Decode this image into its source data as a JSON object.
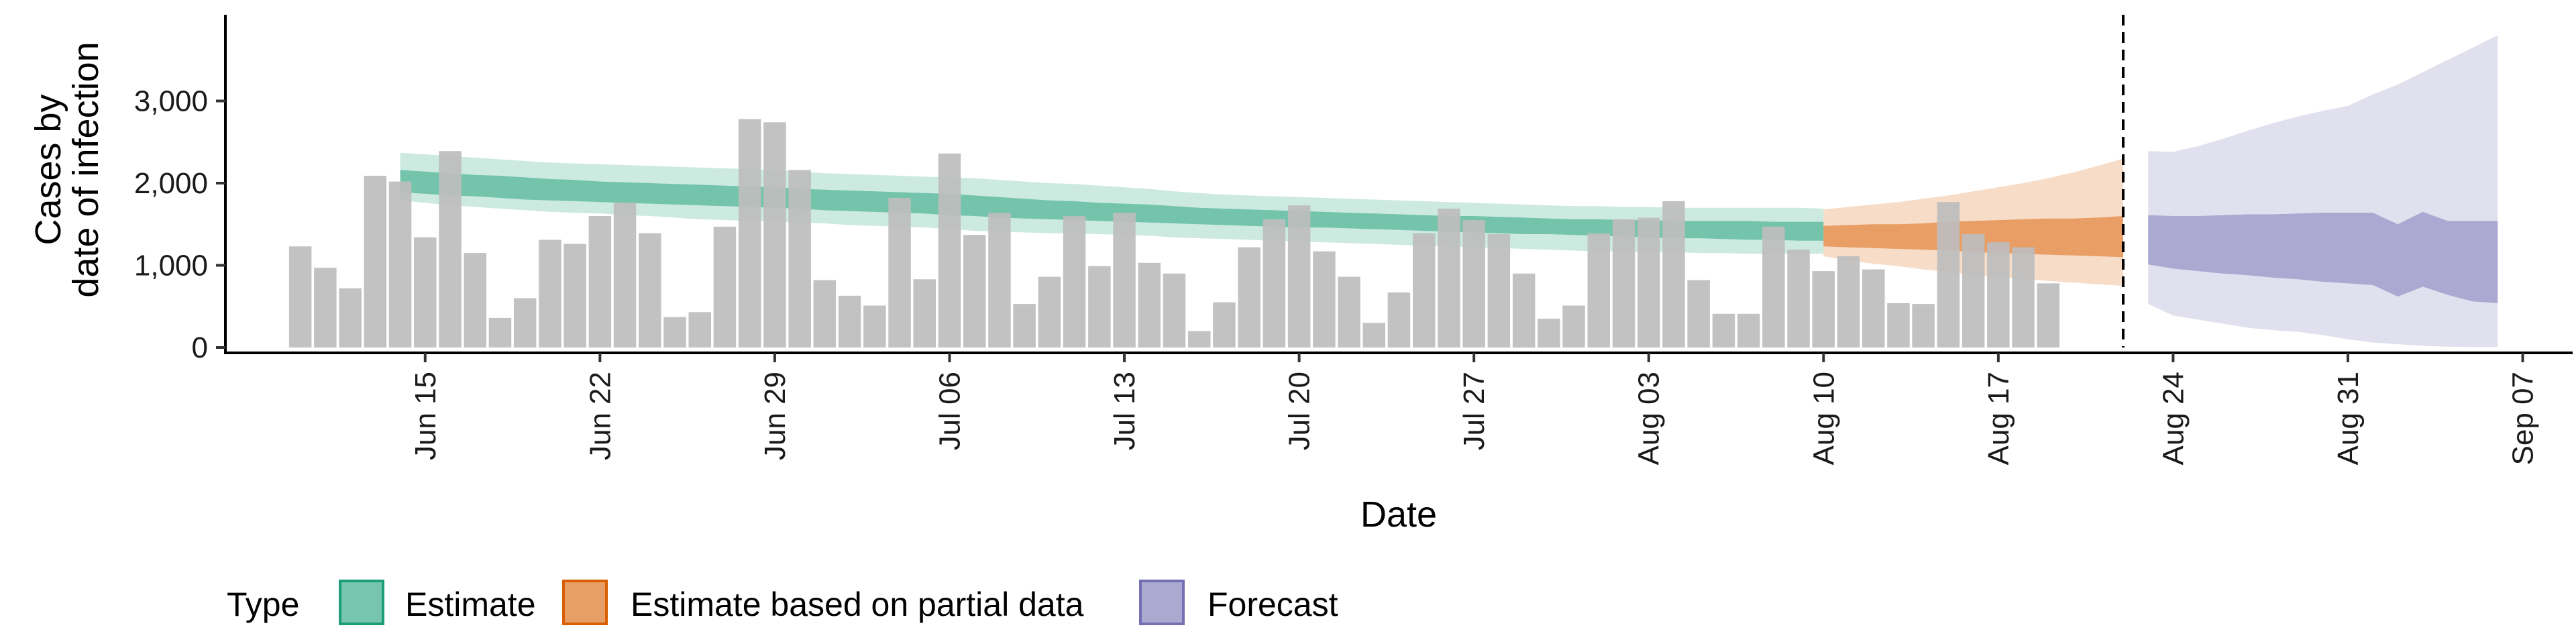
{
  "chart_data": {
    "type": "bar",
    "xlabel": "Date",
    "ylabel_lines": [
      "Cases by",
      "date of infection"
    ],
    "ylim": [
      0,
      4000
    ],
    "yticks": [
      0,
      1000,
      2000,
      3000
    ],
    "ytick_labels": [
      "0",
      "1,000",
      "2,000",
      "3,000"
    ],
    "x_start_date": "2020-06-10",
    "xlim_dates": [
      "2020-06-07",
      "2020-09-09"
    ],
    "xticks": [
      {
        "date": "2020-06-15",
        "label": "Jun 15"
      },
      {
        "date": "2020-06-22",
        "label": "Jun 22"
      },
      {
        "date": "2020-06-29",
        "label": "Jun 29"
      },
      {
        "date": "2020-07-06",
        "label": "Jul 06"
      },
      {
        "date": "2020-07-13",
        "label": "Jul 13"
      },
      {
        "date": "2020-07-20",
        "label": "Jul 20"
      },
      {
        "date": "2020-07-27",
        "label": "Jul 27"
      },
      {
        "date": "2020-08-03",
        "label": "Aug 03"
      },
      {
        "date": "2020-08-10",
        "label": "Aug 10"
      },
      {
        "date": "2020-08-17",
        "label": "Aug 17"
      },
      {
        "date": "2020-08-24",
        "label": "Aug 24"
      },
      {
        "date": "2020-08-31",
        "label": "Aug 31"
      },
      {
        "date": "2020-09-07",
        "label": "Sep 07"
      }
    ],
    "vline_date": "2020-08-22",
    "bar_color": "#bdbdbd",
    "cases": [
      1230,
      970,
      720,
      2090,
      2020,
      1340,
      2390,
      1150,
      360,
      600,
      1310,
      1260,
      1600,
      1760,
      1390,
      370,
      430,
      1470,
      2780,
      2740,
      2160,
      820,
      630,
      510,
      1820,
      830,
      2360,
      1370,
      1640,
      530,
      860,
      1600,
      990,
      1640,
      1030,
      900,
      200,
      550,
      1220,
      1560,
      1730,
      1170,
      860,
      300,
      670,
      1390,
      1690,
      1550,
      1380,
      900,
      350,
      510,
      1390,
      1560,
      1580,
      1780,
      820,
      410,
      410,
      1470,
      1190,
      930,
      1110,
      950,
      540,
      530,
      1770,
      1380,
      1280,
      1220,
      780
    ],
    "series": [
      {
        "name": "Estimate",
        "color": "#1b9e77",
        "start_date": "2020-06-14",
        "lower90": [
          1790,
          1760,
          1730,
          1710,
          1690,
          1670,
          1650,
          1640,
          1630,
          1610,
          1600,
          1580,
          1560,
          1550,
          1540,
          1530,
          1520,
          1510,
          1490,
          1480,
          1470,
          1460,
          1440,
          1420,
          1410,
          1400,
          1390,
          1390,
          1380,
          1370,
          1360,
          1340,
          1330,
          1320,
          1310,
          1300,
          1290,
          1280,
          1270,
          1260,
          1250,
          1240,
          1230,
          1220,
          1210,
          1200,
          1190,
          1180,
          1170,
          1170,
          1160,
          1160,
          1150,
          1150,
          1140,
          1140,
          1140,
          1140
        ],
        "upper90": [
          2370,
          2350,
          2330,
          2310,
          2290,
          2270,
          2250,
          2240,
          2230,
          2220,
          2210,
          2200,
          2190,
          2180,
          2170,
          2160,
          2140,
          2120,
          2110,
          2100,
          2090,
          2080,
          2070,
          2060,
          2040,
          2020,
          2000,
          1990,
          1970,
          1950,
          1930,
          1900,
          1880,
          1860,
          1850,
          1840,
          1830,
          1820,
          1810,
          1800,
          1790,
          1780,
          1770,
          1760,
          1750,
          1740,
          1730,
          1720,
          1720,
          1710,
          1710,
          1700,
          1700,
          1700,
          1700,
          1700,
          1700,
          1690
        ],
        "lower50": [
          1890,
          1870,
          1850,
          1840,
          1820,
          1800,
          1790,
          1780,
          1770,
          1760,
          1750,
          1740,
          1730,
          1720,
          1710,
          1700,
          1690,
          1670,
          1660,
          1650,
          1640,
          1630,
          1610,
          1600,
          1580,
          1570,
          1560,
          1550,
          1540,
          1530,
          1520,
          1510,
          1500,
          1490,
          1480,
          1470,
          1460,
          1460,
          1450,
          1440,
          1430,
          1420,
          1410,
          1400,
          1390,
          1380,
          1380,
          1370,
          1360,
          1350,
          1340,
          1330,
          1330,
          1320,
          1310,
          1310,
          1300,
          1300
        ],
        "upper50": [
          2160,
          2140,
          2120,
          2100,
          2090,
          2070,
          2050,
          2040,
          2020,
          2010,
          2000,
          1990,
          1980,
          1970,
          1960,
          1950,
          1930,
          1920,
          1910,
          1900,
          1890,
          1880,
          1870,
          1850,
          1830,
          1810,
          1790,
          1780,
          1760,
          1750,
          1740,
          1720,
          1700,
          1690,
          1680,
          1670,
          1660,
          1650,
          1640,
          1630,
          1620,
          1610,
          1600,
          1600,
          1590,
          1580,
          1570,
          1560,
          1560,
          1550,
          1550,
          1540,
          1540,
          1540,
          1540,
          1530,
          1530,
          1530
        ]
      },
      {
        "name": "Estimate based on partial data",
        "color": "#d95f02",
        "start_date": "2020-08-10",
        "lower90": [
          1110,
          1060,
          1020,
          990,
          950,
          920,
          880,
          860,
          840,
          810,
          790,
          770,
          750
        ],
        "upper90": [
          1680,
          1710,
          1740,
          1770,
          1810,
          1850,
          1900,
          1950,
          2000,
          2060,
          2130,
          2210,
          2300
        ],
        "lower50": [
          1230,
          1220,
          1210,
          1200,
          1190,
          1180,
          1160,
          1150,
          1140,
          1130,
          1120,
          1110,
          1100
        ],
        "upper50": [
          1480,
          1490,
          1500,
          1500,
          1510,
          1530,
          1540,
          1550,
          1560,
          1570,
          1570,
          1580,
          1600
        ]
      },
      {
        "name": "Forecast",
        "color": "#7570b3",
        "start_date": "2020-08-23",
        "lower90": [
          530,
          390,
          340,
          290,
          240,
          210,
          190,
          150,
          100,
          60,
          40,
          20,
          10,
          5,
          5
        ],
        "upper90": [
          2390,
          2380,
          2450,
          2540,
          2640,
          2730,
          2810,
          2880,
          2940,
          3080,
          3200,
          3350,
          3500,
          3650,
          3800
        ],
        "lower50": [
          1010,
          960,
          930,
          900,
          880,
          850,
          830,
          800,
          780,
          760,
          620,
          740,
          640,
          560,
          540
        ],
        "upper50": [
          1610,
          1600,
          1600,
          1610,
          1620,
          1620,
          1630,
          1640,
          1640,
          1640,
          1500,
          1650,
          1540,
          1540,
          1540
        ]
      }
    ],
    "legend_title": "Type",
    "legend_position": "bottom-left",
    "grid": false
  }
}
